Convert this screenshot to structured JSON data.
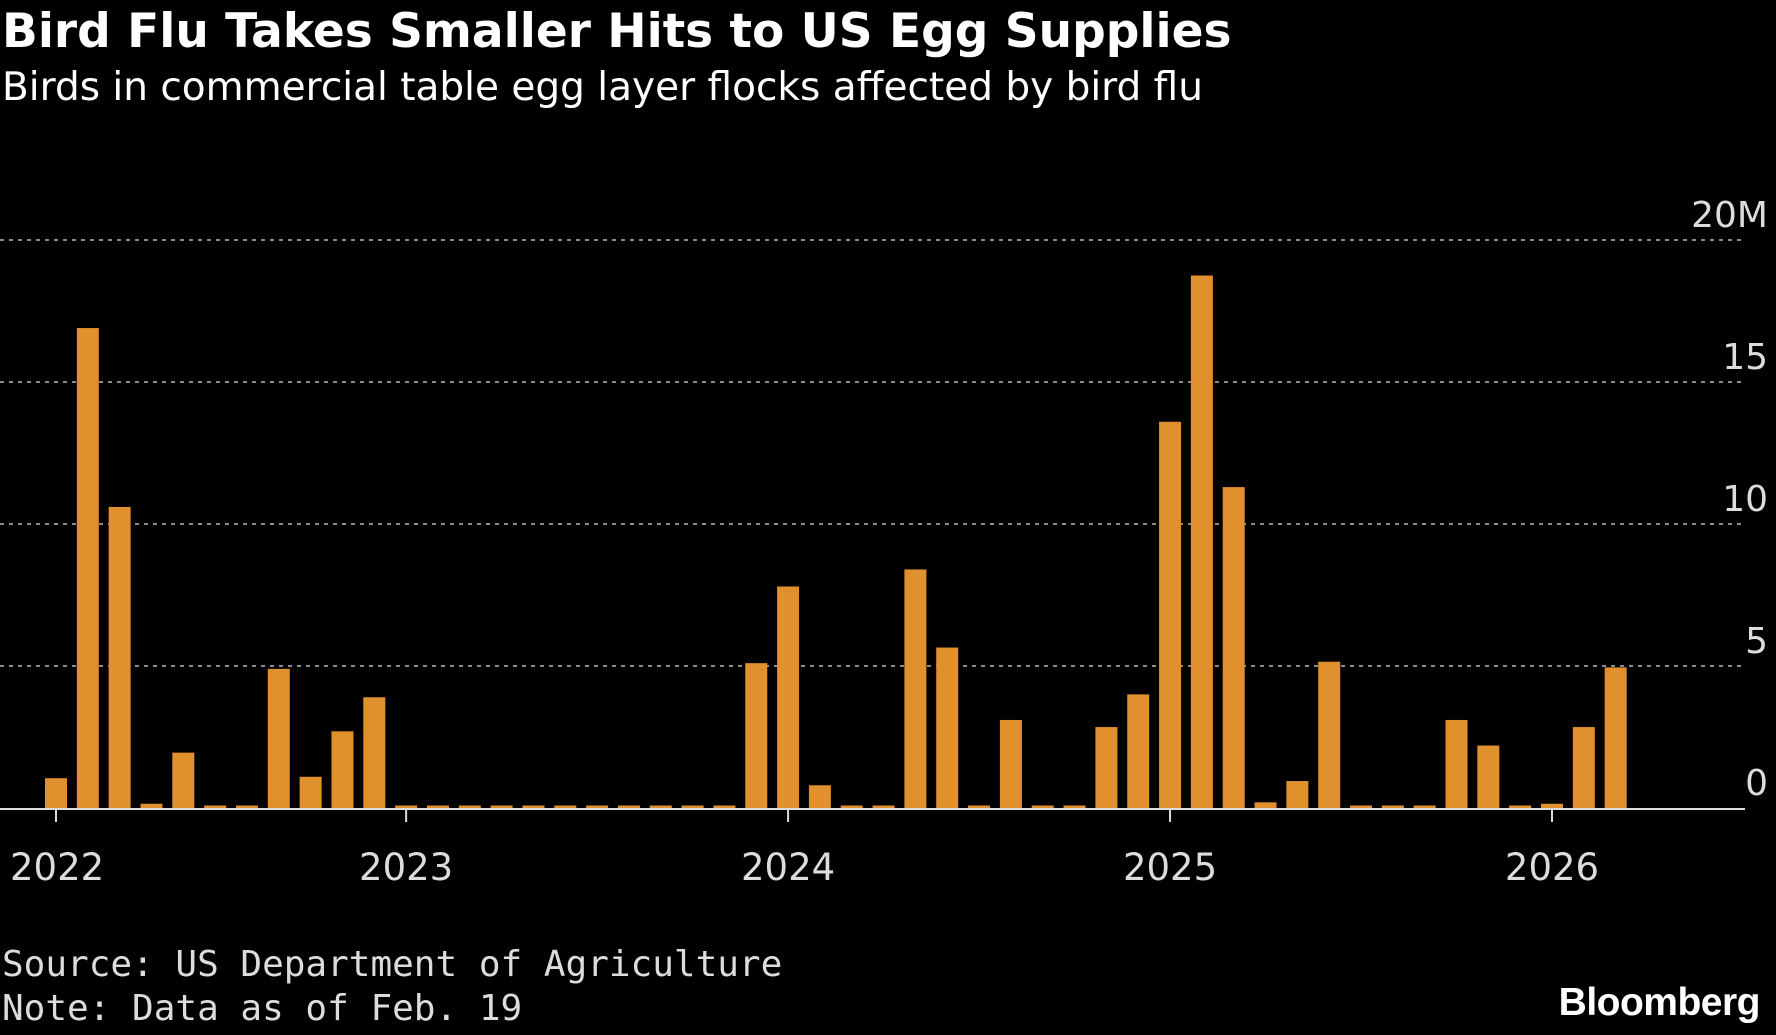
{
  "header": {
    "title": "Bird Flu Takes Smaller Hits to US Egg Supplies",
    "subtitle": "Birds in commercial table egg layer flocks affected by bird flu"
  },
  "footer": {
    "source": "Source: US Department of Agriculture",
    "note": "Note: Data as of Feb. 19",
    "brand": "Bloomberg"
  },
  "colors": {
    "background": "#000000",
    "bar": "#e0902c",
    "grid": "#8a8a8a",
    "axis": "#dcdcdc",
    "text": "#ffffff"
  },
  "chart_data": {
    "type": "bar",
    "title": "Bird Flu Takes Smaller Hits to US Egg Supplies",
    "subtitle": "Birds in commercial table egg layer flocks affected by bird flu",
    "xlabel": "",
    "ylabel": "",
    "unit": "M",
    "ylim": [
      0,
      20
    ],
    "y_ticks": [
      {
        "value": 0,
        "label": "0"
      },
      {
        "value": 5,
        "label": "5"
      },
      {
        "value": 10,
        "label": "10"
      },
      {
        "value": 15,
        "label": "15"
      },
      {
        "value": 20,
        "label": "20M"
      }
    ],
    "grid": true,
    "x_tick_labels": [
      {
        "index": 0,
        "label": "2022"
      },
      {
        "index": 11,
        "label": "2023"
      },
      {
        "index": 23,
        "label": "2024"
      },
      {
        "index": 35,
        "label": "2025"
      },
      {
        "index": 47,
        "label": "2026"
      }
    ],
    "categories": [
      "2022-01",
      "2022-02",
      "2022-03",
      "2022-04",
      "2022-05",
      "2022-06",
      "2022-07",
      "2022-08",
      "2022-09",
      "2022-10",
      "2022-11",
      "2022-12",
      "2023-01",
      "2023-02",
      "2023-03",
      "2023-04",
      "2023-05",
      "2023-06",
      "2023-07",
      "2023-08",
      "2023-09",
      "2023-10",
      "2023-11",
      "2023-12",
      "2024-01",
      "2024-02",
      "2024-03",
      "2024-04",
      "2024-05",
      "2024-06",
      "2024-07",
      "2024-08",
      "2024-09",
      "2024-10",
      "2024-11",
      "2024-12",
      "2025-01",
      "2025-02",
      "2025-03",
      "2025-04",
      "2025-05",
      "2025-06",
      "2025-07",
      "2025-08",
      "2025-09",
      "2025-10",
      "2025-11",
      "2025-12",
      "2026-01",
      "2026-02"
    ],
    "values": [
      1.05,
      16.9,
      10.6,
      0.15,
      1.95,
      0,
      0,
      4.9,
      1.1,
      2.7,
      3.9,
      0,
      0,
      0,
      0,
      0,
      0,
      0,
      0,
      0,
      0,
      0,
      5.1,
      7.8,
      0.8,
      0,
      0,
      8.4,
      5.65,
      0,
      3.1,
      0,
      0,
      2.85,
      4.0,
      13.6,
      18.75,
      11.3,
      0.2,
      0.95,
      5.15,
      0,
      0,
      0,
      3.1,
      2.2,
      0,
      0.15,
      2.85,
      4.95
    ]
  }
}
